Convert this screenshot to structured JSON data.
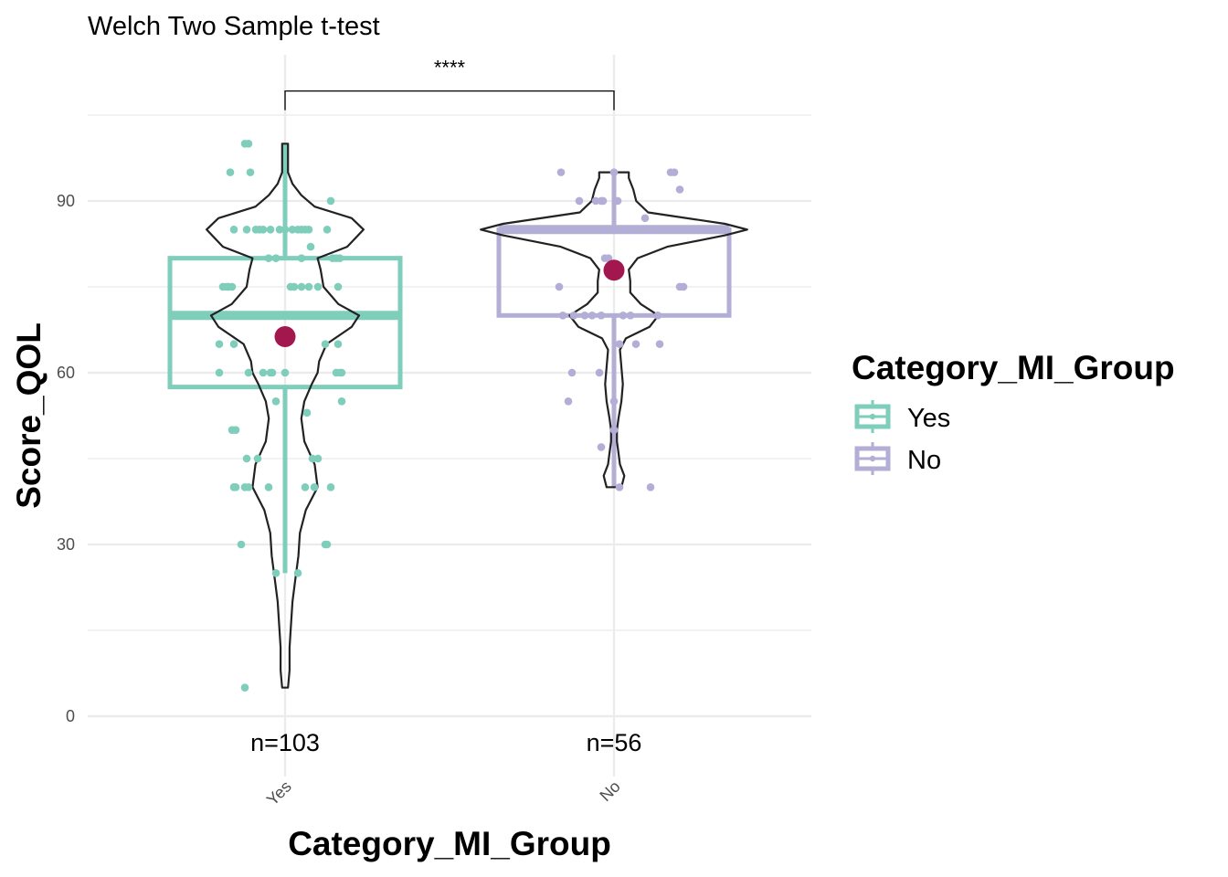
{
  "chart_data": {
    "type": "violin-box-jitter",
    "subtitle": "Welch Two Sample t-test",
    "xlabel": "Category_MI_Group",
    "ylabel": "Score_QOL",
    "ylim": [
      0,
      110
    ],
    "yticks": [
      0,
      30,
      60,
      90
    ],
    "categories": [
      "Yes",
      "No"
    ],
    "grid": true,
    "legend": {
      "title": "Category_MI_Group",
      "position": "right",
      "entries": [
        {
          "label": "Yes",
          "color": "#7fcdbb"
        },
        {
          "label": "No",
          "color": "#b3aed5"
        }
      ]
    },
    "significance": {
      "label": "****",
      "from": "Yes",
      "to": "No",
      "y": 110
    },
    "groups": [
      {
        "name": "Yes",
        "n_label": "n=103",
        "color": "#7fcdbb",
        "box": {
          "q1": 57.5,
          "median": 70,
          "q3": 80,
          "whisker_low": 25,
          "whisker_high": 100
        },
        "mean": 66.3,
        "violin": [
          [
            5,
            0.02
          ],
          [
            8,
            0.03
          ],
          [
            12,
            0.03
          ],
          [
            16,
            0.04
          ],
          [
            20,
            0.05
          ],
          [
            24,
            0.07
          ],
          [
            28,
            0.09
          ],
          [
            32,
            0.1
          ],
          [
            36,
            0.14
          ],
          [
            40,
            0.22
          ],
          [
            44,
            0.2
          ],
          [
            48,
            0.13
          ],
          [
            52,
            0.11
          ],
          [
            55,
            0.13
          ],
          [
            58,
            0.18
          ],
          [
            60,
            0.22
          ],
          [
            62,
            0.23
          ],
          [
            65,
            0.28
          ],
          [
            68,
            0.45
          ],
          [
            70,
            0.5
          ],
          [
            72,
            0.36
          ],
          [
            75,
            0.26
          ],
          [
            78,
            0.24
          ],
          [
            80,
            0.22
          ],
          [
            82,
            0.42
          ],
          [
            85,
            0.53
          ],
          [
            87,
            0.45
          ],
          [
            89,
            0.2
          ],
          [
            91,
            0.11
          ],
          [
            93,
            0.05
          ],
          [
            95,
            0.02
          ],
          [
            98,
            0.02
          ],
          [
            100,
            0.02
          ]
        ],
        "points": [
          [
            5,
            -0.22
          ],
          [
            25,
            -0.05
          ],
          [
            25,
            0.07
          ],
          [
            30,
            -0.24
          ],
          [
            30,
            0.22
          ],
          [
            30,
            0.23
          ],
          [
            40,
            -0.28
          ],
          [
            40,
            -0.27
          ],
          [
            40,
            -0.22
          ],
          [
            40,
            -0.2
          ],
          [
            40,
            -0.09
          ],
          [
            40,
            0.11
          ],
          [
            40,
            0.16
          ],
          [
            40,
            0.25
          ],
          [
            45,
            -0.21
          ],
          [
            45,
            -0.15
          ],
          [
            45,
            0.15
          ],
          [
            45,
            0.18
          ],
          [
            50,
            -0.29
          ],
          [
            50,
            -0.27
          ],
          [
            55,
            -0.05
          ],
          [
            55,
            0.31
          ],
          [
            53,
            0.12
          ],
          [
            60,
            -0.36
          ],
          [
            60,
            -0.2
          ],
          [
            60,
            -0.12
          ],
          [
            60,
            -0.08
          ],
          [
            60,
            -0.07
          ],
          [
            60,
            0.0
          ],
          [
            60,
            0.28
          ],
          [
            60,
            0.3
          ],
          [
            60,
            0.31
          ],
          [
            65,
            -0.36
          ],
          [
            65,
            -0.28
          ],
          [
            65,
            0.22
          ],
          [
            65,
            0.29
          ],
          [
            70,
            -0.21
          ],
          [
            70,
            -0.09
          ],
          [
            70,
            -0.05
          ],
          [
            70,
            -0.03
          ],
          [
            70,
            0.05
          ],
          [
            70,
            0.11
          ],
          [
            70,
            0.25
          ],
          [
            75,
            -0.34
          ],
          [
            75,
            -0.32
          ],
          [
            75,
            -0.31
          ],
          [
            75,
            -0.29
          ],
          [
            75,
            0.03
          ],
          [
            75,
            0.05
          ],
          [
            75,
            0.09
          ],
          [
            75,
            0.13
          ],
          [
            75,
            0.18
          ],
          [
            75,
            0.29
          ],
          [
            80,
            -0.09
          ],
          [
            80,
            -0.05
          ],
          [
            80,
            0.09
          ],
          [
            80,
            0.26
          ],
          [
            80,
            0.28
          ],
          [
            80,
            0.3
          ],
          [
            85,
            -0.28
          ],
          [
            85,
            -0.21
          ],
          [
            85,
            -0.16
          ],
          [
            85,
            -0.14
          ],
          [
            85,
            -0.12
          ],
          [
            85,
            -0.08
          ],
          [
            85,
            -0.03
          ],
          [
            85,
            0.0
          ],
          [
            85,
            0.04
          ],
          [
            85,
            0.07
          ],
          [
            85,
            0.09
          ],
          [
            85,
            0.11
          ],
          [
            85,
            0.13
          ],
          [
            82,
            0.14
          ],
          [
            85,
            0.23
          ],
          [
            90,
            0.25
          ],
          [
            95,
            -0.3
          ],
          [
            95,
            -0.19
          ],
          [
            100,
            -0.22
          ],
          [
            100,
            -0.2
          ]
        ]
      },
      {
        "name": "No",
        "n_label": "n=56",
        "color": "#b3aed5",
        "box": {
          "q1": 70,
          "median": 85,
          "q3": 85,
          "whisker_low": 40,
          "whisker_high": 95
        },
        "mean": 77.9,
        "violin": [
          [
            40,
            0.05
          ],
          [
            42,
            0.07
          ],
          [
            44,
            0.04
          ],
          [
            46,
            0.03
          ],
          [
            48,
            0.02
          ],
          [
            50,
            0.02
          ],
          [
            52,
            0.03
          ],
          [
            55,
            0.05
          ],
          [
            58,
            0.06
          ],
          [
            61,
            0.05
          ],
          [
            64,
            0.04
          ],
          [
            66,
            0.08
          ],
          [
            68,
            0.24
          ],
          [
            70,
            0.3
          ],
          [
            72,
            0.18
          ],
          [
            74,
            0.11
          ],
          [
            76,
            0.11
          ],
          [
            78,
            0.1
          ],
          [
            80,
            0.16
          ],
          [
            82,
            0.36
          ],
          [
            84,
            0.75
          ],
          [
            85,
            0.9
          ],
          [
            86,
            0.75
          ],
          [
            88,
            0.23
          ],
          [
            90,
            0.15
          ],
          [
            92,
            0.13
          ],
          [
            94,
            0.1
          ],
          [
            95,
            0.1
          ]
        ],
        "points": [
          [
            40,
            0.03
          ],
          [
            40,
            0.2
          ],
          [
            47,
            -0.07
          ],
          [
            50,
            0.0
          ],
          [
            55,
            -0.25
          ],
          [
            55,
            0.0
          ],
          [
            60,
            -0.23
          ],
          [
            60,
            -0.08
          ],
          [
            65,
            0.03
          ],
          [
            65,
            0.12
          ],
          [
            65,
            0.25
          ],
          [
            70,
            -0.28
          ],
          [
            70,
            -0.22
          ],
          [
            70,
            -0.16
          ],
          [
            70,
            -0.12
          ],
          [
            70,
            -0.07
          ],
          [
            70,
            0.05
          ],
          [
            70,
            0.09
          ],
          [
            70,
            0.24
          ],
          [
            75,
            -0.3
          ],
          [
            75,
            0.36
          ],
          [
            75,
            0.38
          ],
          [
            80,
            -0.05
          ],
          [
            80,
            -0.03
          ],
          [
            85,
            -0.17
          ],
          [
            85,
            -0.06
          ],
          [
            85,
            0.09
          ],
          [
            85,
            0.11
          ],
          [
            85,
            0.15
          ],
          [
            85,
            0.19
          ],
          [
            87,
            0.17
          ],
          [
            90,
            -0.19
          ],
          [
            90,
            -0.1
          ],
          [
            90,
            -0.07
          ],
          [
            90,
            -0.06
          ],
          [
            90,
            0.02
          ],
          [
            92,
            0.36
          ],
          [
            95,
            -0.29
          ],
          [
            95,
            0.0
          ],
          [
            95,
            0.31
          ],
          [
            95,
            0.33
          ]
        ]
      }
    ]
  },
  "colors": {
    "mean_point": "#a3174f",
    "violin_outline": "#222222",
    "grid": "#ebebeb"
  }
}
